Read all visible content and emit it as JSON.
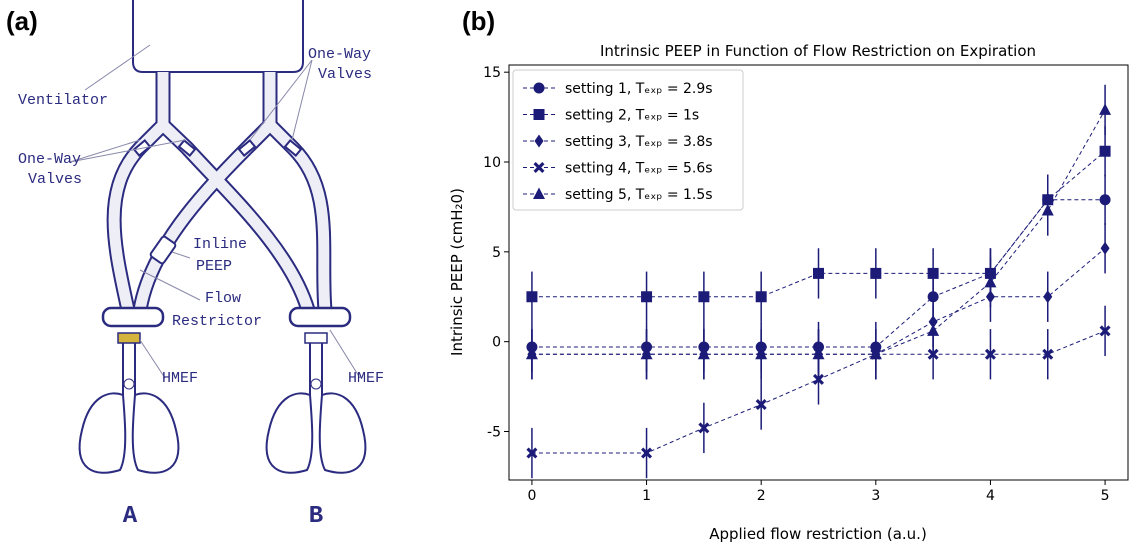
{
  "diagram": {
    "panel_label": "(a)",
    "ventilator": "Ventilator",
    "valves_top": [
      "One-Way",
      "Valves"
    ],
    "valves_left": [
      "One-Way",
      "Valves"
    ],
    "inline_peep": [
      "Inline",
      "PEEP"
    ],
    "flow_restrictor": [
      "Flow",
      "Restrictor"
    ],
    "hmef_a": "HMEF",
    "hmef_b": "HMEF",
    "patient_a": "A",
    "patient_b": "B"
  },
  "chart_data": {
    "type": "line",
    "panel_label": "(b)",
    "title": "Intrinsic PEEP in Function of Flow Restriction on Expiration",
    "x_label": "Applied flow restriction (a.u.)",
    "y_label": "Intrinsic PEEP (cmH₂0)",
    "x": [
      0,
      1,
      1.5,
      2,
      2.5,
      3,
      3.5,
      4,
      4.5,
      5
    ],
    "xlim": [
      -0.2,
      5.2
    ],
    "ylim": [
      -7.7,
      15.4
    ],
    "xticks": [
      0,
      1,
      2,
      3,
      4,
      5
    ],
    "yticks": [
      -5,
      0,
      5,
      10,
      15
    ],
    "legend": "upper left",
    "grid": false,
    "series": [
      {
        "name": "setting 1, Tₑₓₚ = 2.9s",
        "color": "#1c1c78",
        "marker": "circle",
        "values": [
          -0.3,
          -0.3,
          -0.3,
          -0.3,
          -0.3,
          -0.3,
          2.5,
          3.8,
          7.9,
          7.9
        ],
        "errors": [
          1.4,
          1.4,
          1.4,
          1.4,
          1.4,
          1.4,
          1.4,
          1.4,
          1.4,
          1.4
        ]
      },
      {
        "name": "setting 2, Tₑₓₚ = 1s",
        "color": "#1c1c78",
        "marker": "square",
        "values": [
          2.5,
          2.5,
          2.5,
          2.5,
          3.8,
          3.8,
          3.8,
          3.8,
          7.9,
          10.6
        ],
        "errors": [
          1.4,
          1.4,
          1.4,
          1.4,
          1.4,
          1.4,
          1.4,
          1.4,
          1.4,
          1.4
        ]
      },
      {
        "name": "setting 3, Tₑₓₚ = 3.8s",
        "color": "#1c1c78",
        "marker": "diamond",
        "values": [
          -0.7,
          -0.7,
          -0.7,
          -0.7,
          -0.7,
          -0.7,
          1.1,
          2.5,
          2.5,
          5.2
        ],
        "errors": [
          1.4,
          1.4,
          1.4,
          1.4,
          1.4,
          1.4,
          1.4,
          1.4,
          1.4,
          1.4
        ]
      },
      {
        "name": "setting 4, Tₑₓₚ = 5.6s",
        "color": "#1c1c78",
        "marker": "x",
        "values": [
          -6.2,
          -6.2,
          -4.8,
          -3.5,
          -2.1,
          -0.7,
          -0.7,
          -0.7,
          -0.7,
          0.6
        ],
        "errors": [
          1.4,
          1.4,
          1.4,
          1.4,
          1.4,
          1.4,
          1.4,
          1.4,
          1.4,
          1.4
        ]
      },
      {
        "name": "setting 5, Tₑₓₚ = 1.5s",
        "color": "#1c1c78",
        "marker": "triangle",
        "values": [
          -0.7,
          -0.7,
          -0.7,
          -0.7,
          -0.7,
          -0.7,
          0.6,
          3.3,
          7.3,
          12.9
        ],
        "errors": [
          1.4,
          1.4,
          1.4,
          1.4,
          1.4,
          1.4,
          1.4,
          1.4,
          1.4,
          1.4
        ]
      }
    ]
  }
}
